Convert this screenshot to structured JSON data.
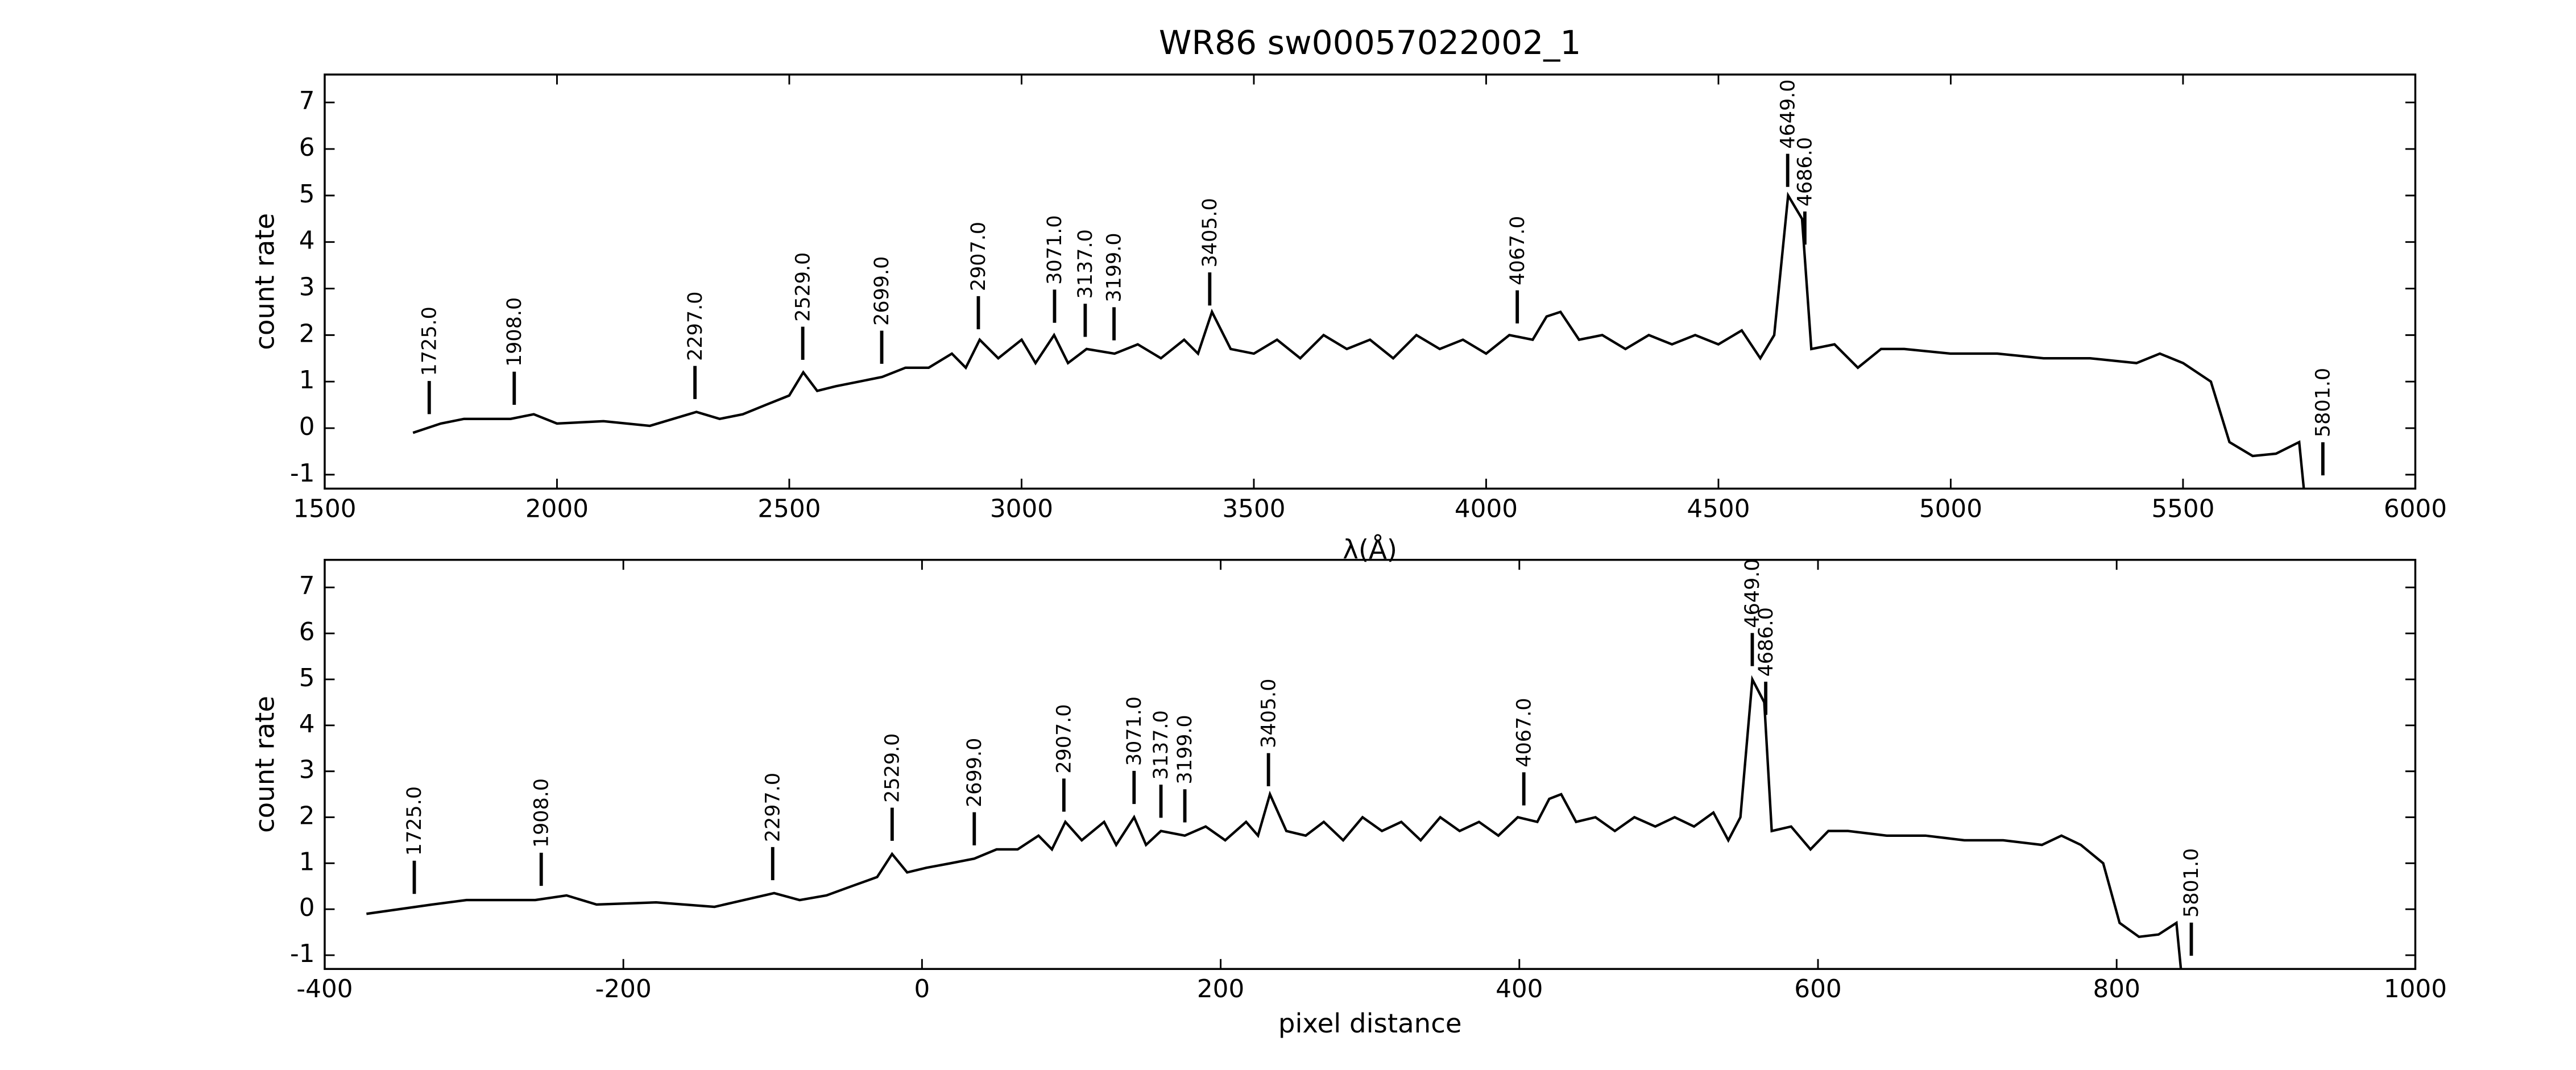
{
  "chart_data": [
    {
      "type": "line",
      "title": "WR86  sw00057022002_1",
      "x_label": "λ(Å)",
      "y_label": "count rate",
      "xlim": [
        1500,
        6000
      ],
      "ylim": [
        -1.3,
        7.6
      ],
      "xticks": [
        1500,
        2000,
        2500,
        3000,
        3500,
        4000,
        4500,
        5000,
        5500,
        6000
      ],
      "yticks": [
        -1,
        0,
        1,
        2,
        3,
        4,
        5,
        6,
        7
      ],
      "series": [
        {
          "color": "#000000",
          "x": [
            1690,
            1750,
            1800,
            1900,
            1950,
            2000,
            2100,
            2200,
            2300,
            2350,
            2400,
            2450,
            2500,
            2530,
            2560,
            2600,
            2650,
            2700,
            2750,
            2800,
            2850,
            2880,
            2910,
            2950,
            3000,
            3030,
            3070,
            3100,
            3140,
            3200,
            3250,
            3300,
            3350,
            3380,
            3410,
            3450,
            3500,
            3550,
            3600,
            3650,
            3700,
            3750,
            3800,
            3850,
            3900,
            3950,
            4000,
            4050,
            4100,
            4130,
            4160,
            4200,
            4250,
            4300,
            4350,
            4400,
            4450,
            4500,
            4550,
            4590,
            4620,
            4650,
            4680,
            4700,
            4750,
            4800,
            4850,
            4900,
            5000,
            5100,
            5200,
            5300,
            5400,
            5450,
            5500,
            5560,
            5600,
            5650,
            5700,
            5750,
            5760
          ],
          "values": [
            -0.1,
            0.1,
            0.2,
            0.2,
            0.3,
            0.1,
            0.15,
            0.05,
            0.35,
            0.2,
            0.3,
            0.5,
            0.7,
            1.2,
            0.8,
            0.9,
            1.0,
            1.1,
            1.3,
            1.3,
            1.6,
            1.3,
            1.9,
            1.5,
            1.9,
            1.4,
            2.0,
            1.4,
            1.7,
            1.6,
            1.8,
            1.5,
            1.9,
            1.6,
            2.5,
            1.7,
            1.6,
            1.9,
            1.5,
            2.0,
            1.7,
            1.9,
            1.5,
            2.0,
            1.7,
            1.9,
            1.6,
            2.0,
            1.9,
            2.4,
            2.5,
            1.9,
            2.0,
            1.7,
            2.0,
            1.8,
            2.0,
            1.8,
            2.1,
            1.5,
            2.0,
            5.0,
            4.5,
            1.7,
            1.8,
            1.3,
            1.7,
            1.7,
            1.6,
            1.6,
            1.5,
            1.5,
            1.4,
            1.6,
            1.4,
            1.0,
            -0.3,
            -0.6,
            -0.55,
            -0.3,
            -1.3
          ]
        }
      ],
      "annotations": [
        {
          "value": 1725,
          "label": "1725.0"
        },
        {
          "value": 1908,
          "label": "1908.0"
        },
        {
          "value": 2297,
          "label": "2297.0"
        },
        {
          "value": 2529,
          "label": "2529.0"
        },
        {
          "value": 2699,
          "label": "2699.0"
        },
        {
          "value": 2907,
          "label": "2907.0"
        },
        {
          "value": 3071,
          "label": "3071.0"
        },
        {
          "value": 3137,
          "label": "3137.0"
        },
        {
          "value": 3199,
          "label": "3199.0"
        },
        {
          "value": 3405,
          "label": "3405.0"
        },
        {
          "value": 4067,
          "label": "4067.0"
        },
        {
          "value": 4649,
          "label": "4649.0"
        },
        {
          "value": 4686,
          "label": "4686.0"
        },
        {
          "value": 5801,
          "label": "5801.0"
        }
      ]
    },
    {
      "type": "line",
      "x_label": "pixel distance",
      "y_label": "count rate",
      "xlim": [
        -400,
        1000
      ],
      "ylim": [
        -1.3,
        7.6
      ],
      "xticks": [
        -400,
        -200,
        0,
        200,
        400,
        600,
        800,
        1000
      ],
      "yticks": [
        -1,
        0,
        1,
        2,
        3,
        4,
        5,
        6,
        7
      ],
      "series": [
        {
          "color": "#000000",
          "x": [
            -372,
            -328,
            -305,
            -259,
            -238,
            -218,
            -178,
            -139,
            -99,
            -82,
            -64,
            -47,
            -30,
            -20,
            -10,
            3,
            19,
            35,
            50,
            64,
            78,
            87,
            96,
            107,
            122,
            130,
            142,
            150,
            160,
            176,
            190,
            203,
            217,
            225,
            233,
            244,
            257,
            269,
            282,
            295,
            308,
            321,
            334,
            347,
            360,
            373,
            386,
            399,
            412,
            420,
            428,
            438,
            451,
            464,
            477,
            491,
            504,
            517,
            530,
            540,
            548,
            556,
            564,
            569,
            582,
            595,
            607,
            620,
            646,
            672,
            698,
            724,
            750,
            763,
            776,
            791,
            802,
            815,
            828,
            840,
            843
          ],
          "values": [
            -0.1,
            0.1,
            0.2,
            0.2,
            0.3,
            0.1,
            0.15,
            0.05,
            0.35,
            0.2,
            0.3,
            0.5,
            0.7,
            1.2,
            0.8,
            0.9,
            1.0,
            1.1,
            1.3,
            1.3,
            1.6,
            1.3,
            1.9,
            1.5,
            1.9,
            1.4,
            2.0,
            1.4,
            1.7,
            1.6,
            1.8,
            1.5,
            1.9,
            1.6,
            2.5,
            1.7,
            1.6,
            1.9,
            1.5,
            2.0,
            1.7,
            1.9,
            1.5,
            2.0,
            1.7,
            1.9,
            1.6,
            2.0,
            1.9,
            2.4,
            2.5,
            1.9,
            2.0,
            1.7,
            2.0,
            1.8,
            2.0,
            1.8,
            2.1,
            1.5,
            2.0,
            5.0,
            4.5,
            1.7,
            1.8,
            1.3,
            1.7,
            1.7,
            1.6,
            1.6,
            1.5,
            1.5,
            1.4,
            1.6,
            1.4,
            1.0,
            -0.3,
            -0.6,
            -0.55,
            -0.3,
            -1.3
          ]
        }
      ],
      "annotations": [
        {
          "value": -340,
          "label": "1725.0"
        },
        {
          "value": -255,
          "label": "1908.0"
        },
        {
          "value": -100,
          "label": "2297.0"
        },
        {
          "value": -20,
          "label": "2529.0"
        },
        {
          "value": 35,
          "label": "2699.0"
        },
        {
          "value": 95,
          "label": "2907.0"
        },
        {
          "value": 142,
          "label": "3071.0"
        },
        {
          "value": 160,
          "label": "3137.0"
        },
        {
          "value": 176,
          "label": "3199.0"
        },
        {
          "value": 232,
          "label": "3405.0"
        },
        {
          "value": 403,
          "label": "4067.0"
        },
        {
          "value": 556,
          "label": "4649.0"
        },
        {
          "value": 565,
          "label": "4686.0"
        },
        {
          "value": 850,
          "label": "5801.0"
        }
      ]
    }
  ]
}
